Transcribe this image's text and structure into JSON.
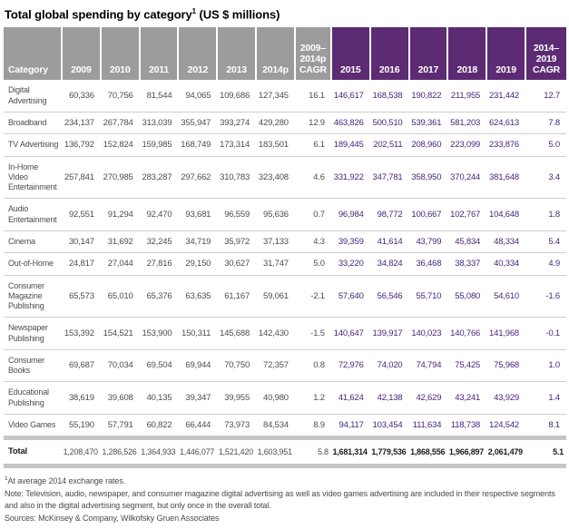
{
  "header": {
    "title_main": "Total global spending by category",
    "title_sup": "1",
    "title_suffix": " (US $ millions)"
  },
  "colors": {
    "header_gray": "#9c9c9c",
    "header_purple": "#5c2b73",
    "value_purple": "#46257b",
    "body_text": "#4d4d4d",
    "total_band": "#c6c6c6",
    "row_line": "#cfcfcf"
  },
  "chart_data": {
    "type": "table",
    "title": "Total global spending by category (US $ millions)",
    "columns": [
      {
        "label": "Category",
        "type": "category"
      },
      {
        "label": "2009",
        "type": "gray"
      },
      {
        "label": "2010",
        "type": "gray"
      },
      {
        "label": "2011",
        "type": "gray"
      },
      {
        "label": "2012",
        "type": "gray"
      },
      {
        "label": "2013",
        "type": "gray"
      },
      {
        "label": "2014p",
        "type": "gray"
      },
      {
        "label": "2009–\n2014p\nCAGR",
        "type": "gray"
      },
      {
        "label": "2015",
        "type": "purple"
      },
      {
        "label": "2016",
        "type": "purple"
      },
      {
        "label": "2017",
        "type": "purple"
      },
      {
        "label": "2018",
        "type": "purple"
      },
      {
        "label": "2019",
        "type": "purple"
      },
      {
        "label": "2014–\n2019\nCAGR",
        "type": "purple"
      }
    ],
    "rows": [
      {
        "category": "Digital Advertising",
        "values": [
          "60,336",
          "70,756",
          "81,544",
          "94,065",
          "109,686",
          "127,345",
          "16.1",
          "146,617",
          "168,538",
          "190,822",
          "211,955",
          "231,442",
          "12.7"
        ]
      },
      {
        "category": "Broadband",
        "values": [
          "234,137",
          "267,784",
          "313,039",
          "355,947",
          "393,274",
          "429,280",
          "12.9",
          "463,826",
          "500,510",
          "539,361",
          "581,203",
          "624,613",
          "7.8"
        ]
      },
      {
        "category": "TV Advertising",
        "values": [
          "136,792",
          "152,824",
          "159,985",
          "168,749",
          "173,314",
          "183,501",
          "6.1",
          "189,445",
          "202,511",
          "208,960",
          "223,099",
          "233,876",
          "5.0"
        ]
      },
      {
        "category": "In-Home Video Entertainment",
        "values": [
          "257,841",
          "270,985",
          "283,287",
          "297,662",
          "310,783",
          "323,408",
          "4.6",
          "331,922",
          "347,781",
          "358,950",
          "370,244",
          "381,648",
          "3.4"
        ]
      },
      {
        "category": "Audio Entertainment",
        "values": [
          "92,551",
          "91,294",
          "92,470",
          "93,681",
          "96,559",
          "95,636",
          "0.7",
          "96,984",
          "98,772",
          "100,667",
          "102,767",
          "104,648",
          "1.8"
        ]
      },
      {
        "category": "Cinema",
        "values": [
          "30,147",
          "31,692",
          "32,245",
          "34,719",
          "35,972",
          "37,133",
          "4.3",
          "39,359",
          "41,614",
          "43,799",
          "45,834",
          "48,334",
          "5.4"
        ]
      },
      {
        "category": "Out-of-Home",
        "values": [
          "24,817",
          "27,044",
          "27,816",
          "29,150",
          "30,627",
          "31,747",
          "5.0",
          "33,220",
          "34,824",
          "36,468",
          "38,337",
          "40,334",
          "4.9"
        ]
      },
      {
        "category": "Consumer Magazine Publishing",
        "values": [
          "65,573",
          "65,010",
          "65,376",
          "63,635",
          "61,167",
          "59,061",
          "-2.1",
          "57,640",
          "56,546",
          "55,710",
          "55,080",
          "54,610",
          "-1.6"
        ]
      },
      {
        "category": "Newspaper Publishing",
        "values": [
          "153,392",
          "154,521",
          "153,900",
          "150,311",
          "145,688",
          "142,430",
          "-1.5",
          "140,647",
          "139,917",
          "140,023",
          "140,766",
          "141,968",
          "-0.1"
        ]
      },
      {
        "category": "Consumer Books",
        "values": [
          "69,687",
          "70,034",
          "69,504",
          "69,944",
          "70,750",
          "72,357",
          "0.8",
          "72,976",
          "74,020",
          "74,794",
          "75,425",
          "75,968",
          "1.0"
        ]
      },
      {
        "category": "Educational Publishing",
        "values": [
          "38,619",
          "39,608",
          "40,135",
          "39,347",
          "39,955",
          "40,980",
          "1.2",
          "41,624",
          "42,138",
          "42,629",
          "43,241",
          "43,929",
          "1.4"
        ]
      },
      {
        "category": "Video Games",
        "values": [
          "55,190",
          "57,791",
          "60,822",
          "66,444",
          "73,973",
          "84,534",
          "8.9",
          "94,117",
          "103,454",
          "111,634",
          "118,738",
          "124,542",
          "8.1"
        ]
      }
    ],
    "total_row": {
      "category": "Total",
      "values": [
        "1,208,470",
        "1,286,526",
        "1,364,933",
        "1,446,077",
        "1,521,420",
        "1,603,951",
        "5.8",
        "1,681,314",
        "1,779,536",
        "1,868,556",
        "1,966,897",
        "2,061,479",
        "5.1"
      ]
    }
  },
  "footnotes": {
    "footnote1_sup": "1",
    "footnote1_text": "At average 2014 exchange rates.",
    "note": "Note: Television, audio, newspaper, and consumer magazine digital advertising as well as video games advertising are included in their respective segments and also in the digital advertising segment, but only once in the overall total.",
    "sources": "Sources: McKinsey & Company, Wilkofsky Gruen Associates"
  }
}
